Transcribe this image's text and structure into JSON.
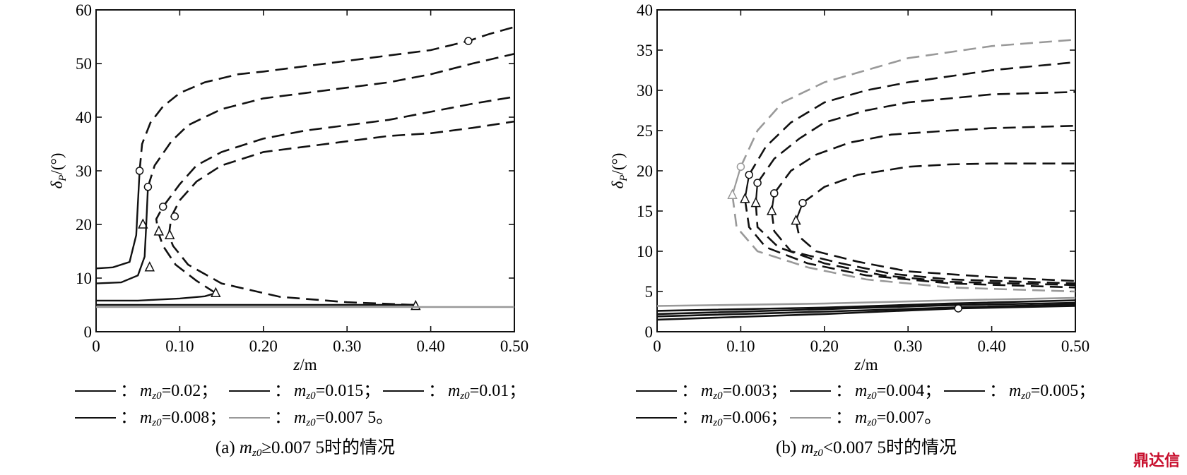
{
  "chart_data": [
    {
      "type": "line",
      "panel_label": "(a)",
      "caption": "(a) m_z0 ≥0.007 5时的情况",
      "caption_parts": {
        "label": "(a)",
        "sym": "m",
        "sub": "z0",
        "rest": "≥0.007 5时的情况"
      },
      "xlabel": "z/m",
      "ylabel": "δP/(°)",
      "xlim": [
        0,
        0.5
      ],
      "ylim": [
        0,
        60
      ],
      "xticks": [
        "0",
        "0.10",
        "0.20",
        "0.30",
        "0.40",
        "0.50"
      ],
      "yticks": [
        "0",
        "10",
        "20",
        "30",
        "40",
        "50",
        "60"
      ],
      "legend": [
        {
          "sym": "m",
          "sub": "z0",
          "text": "=0.02；",
          "color": "#111111"
        },
        {
          "sym": "m",
          "sub": "z0",
          "text": "=0.015；",
          "color": "#111111"
        },
        {
          "sym": "m",
          "sub": "z0",
          "text": "=0.01；",
          "color": "#111111"
        },
        {
          "sym": "m",
          "sub": "z0",
          "text": "=0.008；",
          "color": "#111111"
        },
        {
          "sym": "m",
          "sub": "z0",
          "text": "=0.007 5。",
          "color": "#999999"
        }
      ],
      "series": [
        {
          "color": "#111111",
          "solid": [
            [
              0,
              11.8
            ],
            [
              0.02,
              12
            ],
            [
              0.04,
              13
            ],
            [
              0.048,
              18
            ],
            [
              0.05,
              24
            ],
            [
              0.052,
              30
            ]
          ],
          "dashed": [
            [
              0.052,
              30
            ],
            [
              0.055,
              35
            ],
            [
              0.065,
              39
            ],
            [
              0.08,
              42
            ],
            [
              0.1,
              44.5
            ],
            [
              0.13,
              46.5
            ],
            [
              0.17,
              48
            ],
            [
              0.2,
              48.5
            ],
            [
              0.25,
              49.5
            ],
            [
              0.3,
              50.5
            ],
            [
              0.35,
              51.5
            ],
            [
              0.4,
              52.5
            ],
            [
              0.445,
              54.2
            ],
            [
              0.47,
              55.5
            ],
            [
              0.5,
              56.8
            ]
          ],
          "triangle": [
            0.056,
            20
          ],
          "circle_pts": [
            [
              0.052,
              30
            ],
            [
              0.445,
              54.2
            ]
          ]
        },
        {
          "color": "#111111",
          "solid": [
            [
              0,
              9
            ],
            [
              0.03,
              9.2
            ],
            [
              0.05,
              10.5
            ],
            [
              0.058,
              14
            ],
            [
              0.06,
              20
            ],
            [
              0.062,
              27
            ]
          ],
          "dashed": [
            [
              0.062,
              27
            ],
            [
              0.07,
              31
            ],
            [
              0.09,
              35.5
            ],
            [
              0.11,
              38.5
            ],
            [
              0.15,
              41.5
            ],
            [
              0.2,
              43.5
            ],
            [
              0.25,
              44.5
            ],
            [
              0.3,
              45.5
            ],
            [
              0.35,
              46.5
            ],
            [
              0.4,
              48
            ],
            [
              0.45,
              50
            ],
            [
              0.5,
              51.8
            ]
          ],
          "triangle": [
            0.064,
            12
          ],
          "circle_pts": [
            [
              0.062,
              27
            ]
          ]
        },
        {
          "color": "#111111",
          "solid": [
            [
              0,
              5.8
            ],
            [
              0.05,
              5.8
            ],
            [
              0.1,
              6.2
            ],
            [
              0.13,
              6.6
            ],
            [
              0.143,
              7.2
            ]
          ],
          "dashed": [
            [
              0.143,
              7.2
            ],
            [
              0.12,
              9.5
            ],
            [
              0.095,
              12.5
            ],
            [
              0.08,
              16
            ],
            [
              0.074,
              18.7
            ],
            [
              0.072,
              21
            ],
            [
              0.08,
              23.3
            ],
            [
              0.1,
              27.5
            ],
            [
              0.12,
              31
            ],
            [
              0.15,
              33.5
            ],
            [
              0.2,
              36
            ],
            [
              0.25,
              37.5
            ],
            [
              0.3,
              38.5
            ],
            [
              0.35,
              39.5
            ],
            [
              0.4,
              41
            ],
            [
              0.45,
              42.5
            ],
            [
              0.5,
              43.8
            ]
          ],
          "triangle": [
            0.143,
            7.2
          ],
          "extra_triangle": [
            0.075,
            18.7
          ],
          "circle_pts": [
            [
              0.08,
              23.3
            ]
          ]
        },
        {
          "color": "#111111",
          "solid": [
            [
              0,
              5
            ],
            [
              0.2,
              5
            ],
            [
              0.38,
              5
            ]
          ],
          "dashed": [
            [
              0.38,
              5
            ],
            [
              0.3,
              5.5
            ],
            [
              0.22,
              6.5
            ],
            [
              0.15,
              9
            ],
            [
              0.11,
              12.5
            ],
            [
              0.092,
              16
            ],
            [
              0.087,
              18
            ],
            [
              0.09,
              21.5
            ],
            [
              0.1,
              24.5
            ],
            [
              0.12,
              28
            ],
            [
              0.15,
              31
            ],
            [
              0.2,
              33.5
            ],
            [
              0.25,
              34.5
            ],
            [
              0.3,
              35.5
            ],
            [
              0.35,
              36.5
            ],
            [
              0.4,
              37
            ],
            [
              0.45,
              38
            ],
            [
              0.5,
              39.2
            ]
          ],
          "triangle": [
            0.382,
            4.8
          ],
          "extra_triangle": [
            0.088,
            18
          ],
          "circle_pts": [
            [
              0.094,
              21.5
            ]
          ]
        },
        {
          "color": "#999999",
          "solid": [
            [
              0,
              4.6
            ],
            [
              0.25,
              4.6
            ],
            [
              0.5,
              4.6
            ]
          ],
          "dashed": [],
          "triangle": null,
          "circle_pts": []
        }
      ]
    },
    {
      "type": "line",
      "panel_label": "(b)",
      "caption": "(b) m_z0 <0.007 5时的情况",
      "caption_parts": {
        "label": "(b)",
        "sym": "m",
        "sub": "z0",
        "rest": "<0.007 5时的情况"
      },
      "xlabel": "z/m",
      "ylabel": "δP/(°)",
      "xlim": [
        0,
        0.5
      ],
      "ylim": [
        0,
        40
      ],
      "xticks": [
        "0",
        "0.10",
        "0.20",
        "0.30",
        "0.40",
        "0.50"
      ],
      "yticks": [
        "0",
        "5",
        "10",
        "15",
        "20",
        "25",
        "30",
        "35",
        "40"
      ],
      "legend": [
        {
          "sym": "m",
          "sub": "z0",
          "text": "=0.003；",
          "color": "#111111"
        },
        {
          "sym": "m",
          "sub": "z0",
          "text": "=0.004；",
          "color": "#111111"
        },
        {
          "sym": "m",
          "sub": "z0",
          "text": "=0.005；",
          "color": "#111111"
        },
        {
          "sym": "m",
          "sub": "z0",
          "text": "=0.006；",
          "color": "#111111"
        },
        {
          "sym": "m",
          "sub": "z0",
          "text": "=0.007。",
          "color": "#999999"
        }
      ],
      "series": [
        {
          "color": "#999999",
          "baseline": [
            [
              0,
              3.2
            ],
            [
              0.2,
              3.5
            ],
            [
              0.35,
              3.9
            ],
            [
              0.5,
              4.2
            ]
          ],
          "vertex": [
            0.09,
            17
          ],
          "peak": [
            0.1,
            20.5
          ],
          "upper": [
            [
              0.1,
              20.5
            ],
            [
              0.12,
              25
            ],
            [
              0.15,
              28.5
            ],
            [
              0.2,
              31
            ],
            [
              0.25,
              32.5
            ],
            [
              0.3,
              34
            ],
            [
              0.4,
              35.5
            ],
            [
              0.5,
              36.3
            ]
          ],
          "lower": [
            [
              0.09,
              17
            ],
            [
              0.095,
              13
            ],
            [
              0.12,
              10
            ],
            [
              0.18,
              8
            ],
            [
              0.25,
              6.5
            ],
            [
              0.35,
              5.5
            ],
            [
              0.5,
              5
            ]
          ]
        },
        {
          "color": "#111111",
          "baseline": [
            [
              0,
              2.6
            ],
            [
              0.2,
              3
            ],
            [
              0.35,
              3.5
            ],
            [
              0.5,
              3.9
            ]
          ],
          "vertex": [
            0.105,
            16.5
          ],
          "peak": [
            0.11,
            19.5
          ],
          "upper": [
            [
              0.11,
              19.5
            ],
            [
              0.13,
              23
            ],
            [
              0.16,
              26
            ],
            [
              0.2,
              28.5
            ],
            [
              0.25,
              30
            ],
            [
              0.3,
              31
            ],
            [
              0.4,
              32.5
            ],
            [
              0.5,
              33.5
            ]
          ],
          "lower": [
            [
              0.105,
              16.5
            ],
            [
              0.11,
              13
            ],
            [
              0.13,
              10.5
            ],
            [
              0.18,
              8.5
            ],
            [
              0.25,
              7
            ],
            [
              0.35,
              6
            ],
            [
              0.5,
              5.5
            ]
          ]
        },
        {
          "color": "#111111",
          "baseline": [
            [
              0,
              2.2
            ],
            [
              0.2,
              2.8
            ],
            [
              0.35,
              3.3
            ],
            [
              0.5,
              3.6
            ]
          ],
          "vertex": [
            0.118,
            16
          ],
          "peak": [
            0.12,
            18.5
          ],
          "upper": [
            [
              0.12,
              18.5
            ],
            [
              0.14,
              21.5
            ],
            [
              0.17,
              24
            ],
            [
              0.2,
              26
            ],
            [
              0.25,
              27.5
            ],
            [
              0.3,
              28.5
            ],
            [
              0.4,
              29.5
            ],
            [
              0.5,
              29.8
            ]
          ],
          "lower": [
            [
              0.118,
              16
            ],
            [
              0.12,
              13
            ],
            [
              0.145,
              10.5
            ],
            [
              0.2,
              8.5
            ],
            [
              0.27,
              7
            ],
            [
              0.35,
              6.2
            ],
            [
              0.5,
              5.8
            ]
          ]
        },
        {
          "color": "#111111",
          "baseline": [
            [
              0,
              1.9
            ],
            [
              0.2,
              2.5
            ],
            [
              0.35,
              3
            ],
            [
              0.5,
              3.4
            ]
          ],
          "vertex": [
            0.137,
            15
          ],
          "peak": [
            0.14,
            17.2
          ],
          "upper": [
            [
              0.14,
              17.2
            ],
            [
              0.16,
              20
            ],
            [
              0.19,
              22
            ],
            [
              0.23,
              23.5
            ],
            [
              0.28,
              24.5
            ],
            [
              0.35,
              25
            ],
            [
              0.4,
              25.3
            ],
            [
              0.5,
              25.6
            ]
          ],
          "lower": [
            [
              0.137,
              15
            ],
            [
              0.14,
              12.5
            ],
            [
              0.16,
              10
            ],
            [
              0.22,
              8.5
            ],
            [
              0.28,
              7.2
            ],
            [
              0.35,
              6.5
            ],
            [
              0.5,
              6
            ]
          ]
        },
        {
          "color": "#111111",
          "baseline": [
            [
              0,
              1.5
            ],
            [
              0.2,
              2.2
            ],
            [
              0.36,
              2.9
            ],
            [
              0.5,
              3.2
            ]
          ],
          "vertex": [
            0.166,
            13.8
          ],
          "peak": [
            0.174,
            16
          ],
          "upper": [
            [
              0.174,
              16
            ],
            [
              0.2,
              18
            ],
            [
              0.24,
              19.5
            ],
            [
              0.3,
              20.5
            ],
            [
              0.35,
              20.8
            ],
            [
              0.4,
              20.9
            ],
            [
              0.5,
              20.9
            ]
          ],
          "lower": [
            [
              0.166,
              13.8
            ],
            [
              0.17,
              11.8
            ],
            [
              0.19,
              10
            ],
            [
              0.24,
              8.7
            ],
            [
              0.3,
              7.5
            ],
            [
              0.4,
              6.8
            ],
            [
              0.5,
              6.3
            ]
          ],
          "extra_circle": [
            0.36,
            2.9
          ]
        }
      ]
    }
  ],
  "watermark": "鼎达信"
}
